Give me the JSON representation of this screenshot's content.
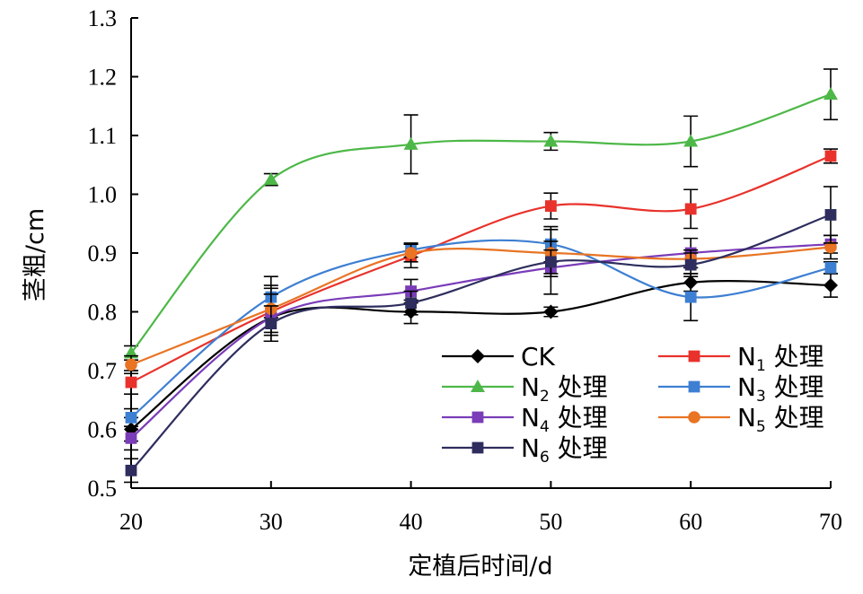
{
  "chart_data": {
    "type": "line",
    "xlabel": "定植后时间/d",
    "ylabel": "茎粗/cm",
    "x": [
      20,
      30,
      40,
      50,
      60,
      70
    ],
    "x_tick_labels": [
      "20",
      "30",
      "40",
      "50",
      "60",
      "70"
    ],
    "ylim": [
      0.5,
      1.3
    ],
    "y_tick_labels": [
      "0.5",
      "0.6",
      "0.7",
      "0.8",
      "0.9",
      "1.0",
      "1.1",
      "1.2",
      "1.3"
    ],
    "grid": false,
    "legend_position": "bottom-right",
    "series": [
      {
        "name": "CK",
        "label": {
          "base": "CK",
          "sub": "",
          "suffix": ""
        },
        "color": "#000000",
        "marker": "diamond",
        "values": [
          0.6,
          0.79,
          0.8,
          0.8,
          0.85,
          0.845
        ],
        "errors": [
          0.02,
          0.04,
          0.02,
          0.008,
          0.015,
          0.02
        ]
      },
      {
        "name": "N1 处理",
        "label": {
          "base": "N",
          "sub": "1",
          "suffix": " 处理"
        },
        "color": "#e8322b",
        "marker": "square",
        "values": [
          0.68,
          0.8,
          0.895,
          0.98,
          0.975,
          1.065
        ],
        "errors": [
          0.02,
          0.04,
          0.02,
          0.022,
          0.033,
          0.012
        ]
      },
      {
        "name": "N2 处理",
        "label": {
          "base": "N",
          "sub": "2",
          "suffix": " 处理"
        },
        "color": "#4db848",
        "marker": "triangle",
        "values": [
          0.73,
          1.025,
          1.085,
          1.09,
          1.09,
          1.17
        ],
        "errors": [
          0.012,
          0.01,
          0.05,
          0.015,
          0.043,
          0.043
        ]
      },
      {
        "name": "N3 处理",
        "label": {
          "base": "N",
          "sub": "3",
          "suffix": " 处理"
        },
        "color": "#3d7fd2",
        "marker": "square",
        "values": [
          0.62,
          0.825,
          0.905,
          0.915,
          0.825,
          0.875
        ],
        "errors": [
          0.015,
          0.035,
          0.012,
          0.03,
          0.04,
          0.01
        ]
      },
      {
        "name": "N4 处理",
        "label": {
          "base": "N",
          "sub": "4",
          "suffix": " 处理"
        },
        "color": "#7a3cb8",
        "marker": "square",
        "values": [
          0.585,
          0.79,
          0.835,
          0.875,
          0.9,
          0.915
        ],
        "errors": [
          0.02,
          0.04,
          0.02,
          0.045,
          0.025,
          0.015
        ]
      },
      {
        "name": "N5 处理",
        "label": {
          "base": "N",
          "sub": "5",
          "suffix": " 处理"
        },
        "color": "#e87424",
        "marker": "circle",
        "values": [
          0.71,
          0.805,
          0.9,
          0.9,
          0.89,
          0.91
        ],
        "errors": [
          0.015,
          0.04,
          0.015,
          0.04,
          0.015,
          0.02
        ]
      },
      {
        "name": "N6 处理",
        "label": {
          "base": "N",
          "sub": "6",
          "suffix": " 处理"
        },
        "color": "#2e2d5e",
        "marker": "square",
        "values": [
          0.53,
          0.78,
          0.815,
          0.885,
          0.88,
          0.965
        ],
        "errors": [
          0.02,
          0.03,
          0.02,
          0.02,
          0.02,
          0.048
        ]
      }
    ]
  }
}
